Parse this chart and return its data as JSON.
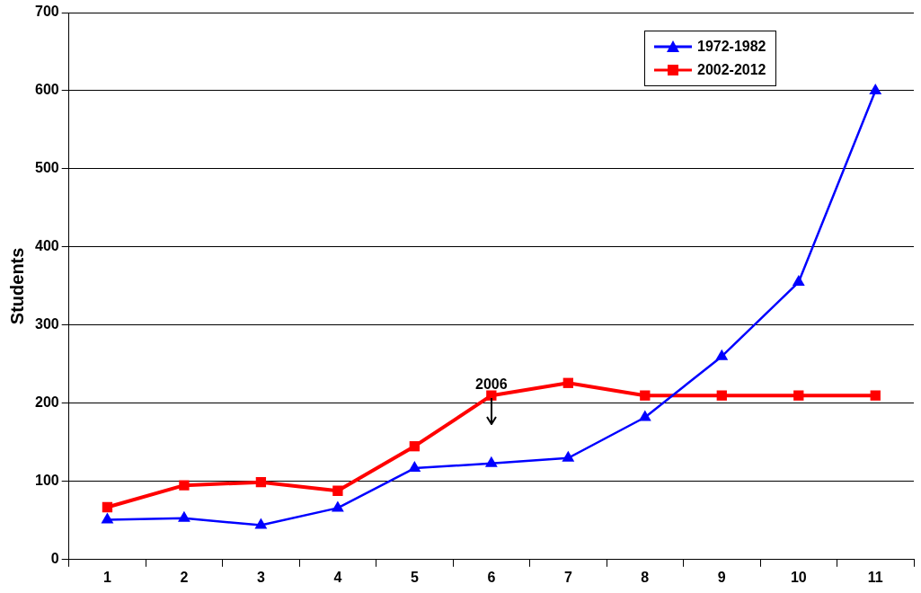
{
  "chart_data": {
    "type": "line",
    "ylabel": "Students",
    "categories": [
      "1",
      "2",
      "3",
      "4",
      "5",
      "6",
      "7",
      "8",
      "9",
      "10",
      "11"
    ],
    "series": [
      {
        "name": "1972-1982",
        "color": "#0000ff",
        "marker": "triangle",
        "values": [
          51,
          53,
          44,
          66,
          117,
          123,
          130,
          182,
          260,
          355,
          600
        ]
      },
      {
        "name": "2002-2012",
        "color": "#ff0000",
        "marker": "square",
        "values": [
          67,
          95,
          99,
          88,
          145,
          210,
          226,
          210,
          210,
          210,
          210
        ]
      }
    ],
    "ylim": [
      0,
      700
    ],
    "yticks": [
      0,
      100,
      200,
      300,
      400,
      500,
      600,
      700
    ],
    "grid": "y",
    "legend": "top right",
    "annotations": [
      {
        "text": "2006",
        "x": "6",
        "y": 210
      }
    ]
  }
}
